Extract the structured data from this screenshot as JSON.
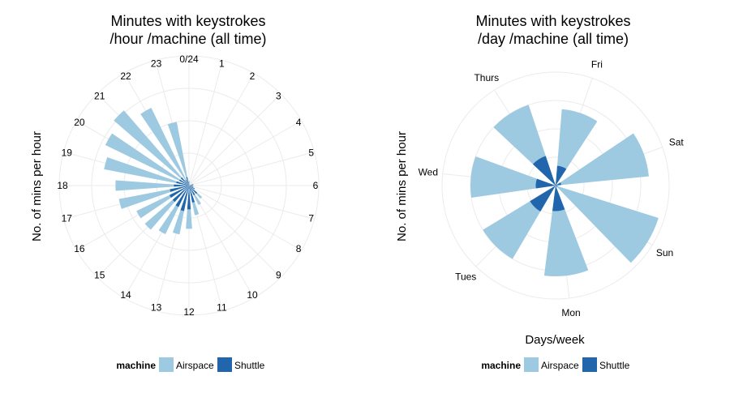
{
  "colors": {
    "Airspace": "#9ecae1",
    "Shuttle": "#2166ac"
  },
  "chart_data": [
    {
      "type": "bar",
      "coord": "polar",
      "title": [
        "Minutes with keystrokes",
        "/hour /machine (all time)"
      ],
      "xlabel": "",
      "ylabel": "No. of mins per hour",
      "categories": [
        "0/24",
        "1",
        "2",
        "3",
        "4",
        "5",
        "6",
        "7",
        "8",
        "9",
        "10",
        "11",
        "12",
        "13",
        "14",
        "15",
        "16",
        "17",
        "18",
        "19",
        "20",
        "21",
        "22",
        "23"
      ],
      "ylim": [
        0,
        60
      ],
      "series": [
        {
          "name": "Airspace",
          "values": [
            0.5,
            0.3,
            0.3,
            0.3,
            0.3,
            0.3,
            0.5,
            1.0,
            2.5,
            8,
            10,
            14,
            20,
            23,
            25,
            27,
            27,
            33,
            34,
            40,
            43,
            46,
            40,
            30
          ]
        },
        {
          "name": "Shuttle",
          "values": [
            2,
            0.8,
            0.3,
            0.3,
            0.3,
            2,
            2,
            2,
            3,
            5,
            5,
            8,
            11,
            12,
            11,
            10,
            10,
            9,
            7,
            6,
            5,
            5,
            3,
            4
          ]
        }
      ],
      "legend": {
        "title": "machine",
        "position": "bottom",
        "entries": [
          "Airspace",
          "Shuttle"
        ]
      }
    },
    {
      "type": "bar",
      "coord": "polar",
      "title": [
        "Minutes with keystrokes",
        "/day /machine (all time)"
      ],
      "xlabel": "Days/week",
      "ylabel": "No. of mins per hour",
      "categories": [
        "Sun",
        "Mon",
        "Tues",
        "Wed",
        "Thurs",
        "Fri",
        "Sat"
      ],
      "ylim": [
        0,
        200
      ],
      "series": [
        {
          "name": "Airspace",
          "values": [
            190,
            160,
            150,
            150,
            150,
            135,
            165
          ]
        },
        {
          "name": "Shuttle",
          "values": [
            4,
            45,
            53,
            35,
            55,
            35,
            10
          ]
        }
      ],
      "legend": {
        "title": "machine",
        "position": "bottom",
        "entries": [
          "Airspace",
          "Shuttle"
        ]
      }
    }
  ]
}
